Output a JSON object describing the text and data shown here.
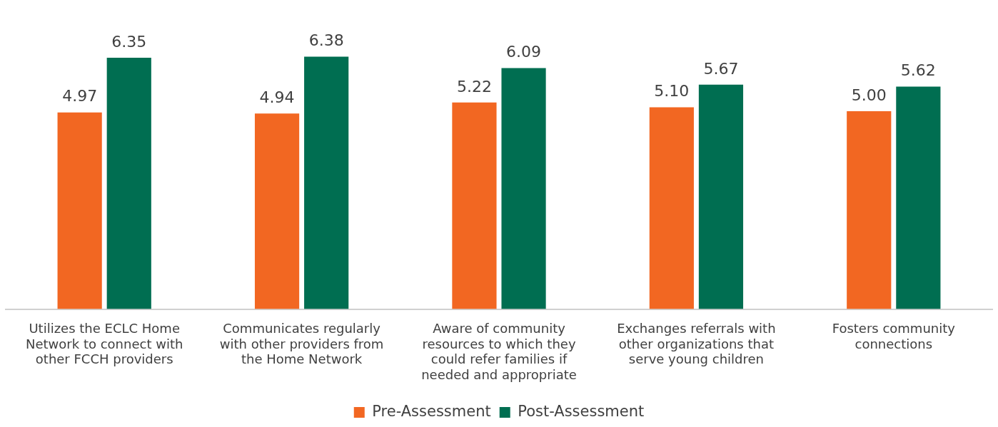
{
  "chart_data": {
    "type": "bar",
    "categories": [
      "Utilizes the ECLC Home Network to connect with other FCCH providers",
      "Communicates regularly with other providers from the Home Network",
      "Aware of community resources to which they could refer families if needed and appropriate",
      "Exchanges referrals with other organizations that serve young children",
      "Fosters community connections"
    ],
    "series": [
      {
        "name": "Pre-Assessment",
        "color": "#f26722",
        "values": [
          4.97,
          4.94,
          5.22,
          5.1,
          5.0
        ],
        "value_labels": [
          "4.97",
          "4.94",
          "5.22",
          "5.10",
          "5.00"
        ]
      },
      {
        "name": "Post-Assessment",
        "color": "#006e51",
        "values": [
          6.35,
          6.38,
          6.09,
          5.67,
          5.62
        ],
        "value_labels": [
          "6.35",
          "6.38",
          "6.09",
          "5.67",
          "5.62"
        ]
      }
    ],
    "grid": false,
    "legend": "bottom"
  }
}
